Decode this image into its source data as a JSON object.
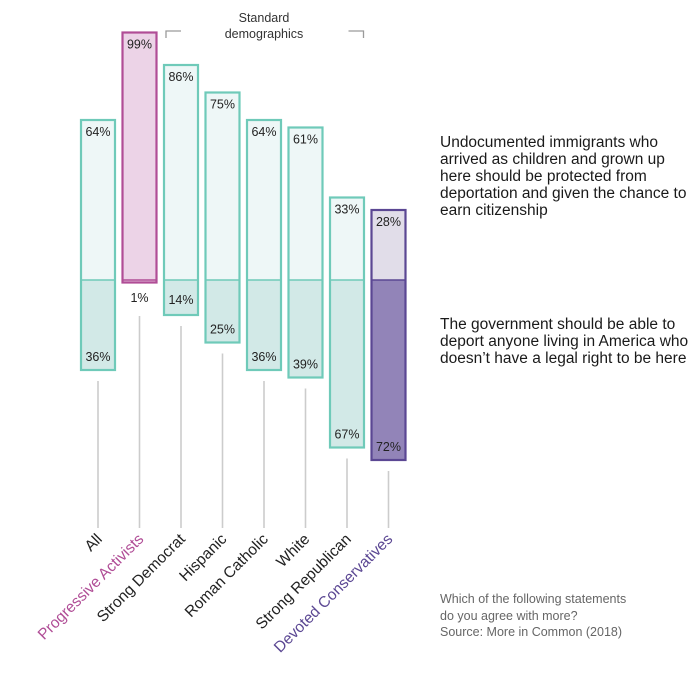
{
  "header": {
    "standard_demographics": "Standard\ndemographics"
  },
  "statements": {
    "protect": "Undocumented immigrants who arrived as children and grown up here should be protected from deportation and given the chance to earn citizenship",
    "deport": "The government should be able to deport anyone living in America who doesn’t have a legal right to be here"
  },
  "footnote": "Which of the following statements do you agree with more?\nSource: More in Common (2018)",
  "colors": {
    "standard_stroke": "#6fcab9",
    "standard_top_fill": "#eef7f7",
    "standard_bottom_fill": "#d2e9e7",
    "activist_stroke": "#b04d96",
    "activist_fill": "#ecd3e7",
    "activist_label": "#b04d96",
    "conservative_stroke": "#5b4793",
    "conservative_top_fill": "#e1dde9",
    "conservative_bottom_fill": "#9284b8",
    "conservative_label": "#5b4793",
    "connector": "#cccccc",
    "text": "#222222"
  },
  "chart_data": {
    "type": "bar",
    "categories": [
      "All",
      "Progressive Activists",
      "Strong Democrat",
      "Hispanic",
      "Roman Catholic",
      "White",
      "Strong Republican",
      "Devoted Conservatives"
    ],
    "series": [
      {
        "values": [
          64,
          99,
          86,
          75,
          64,
          61,
          33,
          28
        ]
      },
      {
        "values": [
          36,
          1,
          14,
          25,
          36,
          39,
          67,
          72
        ]
      }
    ],
    "value_labels": {
      "protect": [
        "64%",
        "99%",
        "86%",
        "75%",
        "64%",
        "61%",
        "33%",
        "28%"
      ],
      "deport": [
        "36%",
        "1%",
        "14%",
        "25%",
        "36%",
        "39%",
        "67%",
        "72%"
      ]
    },
    "groups": [
      "standard",
      "activist",
      "standard",
      "standard",
      "standard",
      "standard",
      "standard",
      "conservative"
    ]
  }
}
